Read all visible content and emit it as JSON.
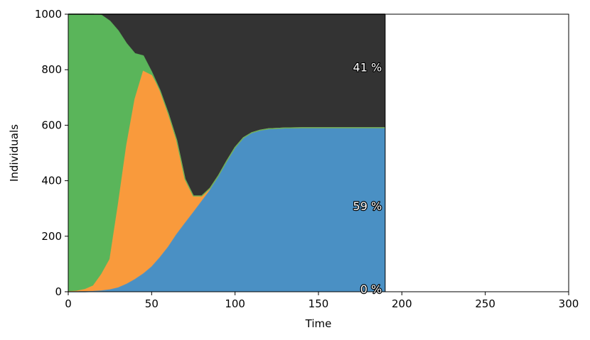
{
  "chart_data": {
    "type": "area",
    "stacked": true,
    "title": "",
    "xlabel": "Time",
    "ylabel": "Individuals",
    "xlim": [
      0,
      300
    ],
    "ylim": [
      0,
      1000
    ],
    "xticks": [
      0,
      50,
      100,
      150,
      200,
      250,
      300
    ],
    "yticks": [
      0,
      200,
      400,
      600,
      800,
      1000
    ],
    "grid": false,
    "legend": "none",
    "x": [
      0,
      5,
      10,
      15,
      20,
      25,
      30,
      35,
      40,
      45,
      50,
      55,
      60,
      65,
      70,
      75,
      80,
      85,
      90,
      95,
      100,
      105,
      110,
      115,
      120,
      130,
      140,
      150,
      160,
      170,
      180,
      190
    ],
    "series": [
      {
        "color": "#4a90c4",
        "values": [
          0,
          0,
          0,
          1,
          3,
          7,
          14,
          27,
          44,
          64,
          89,
          123,
          161,
          206,
          246,
          285,
          325,
          365,
          415,
          470,
          520,
          555,
          573,
          582,
          587,
          590,
          591,
          591,
          591,
          591,
          591,
          591
        ]
      },
      {
        "color": "#f99a3c",
        "values": [
          0,
          2,
          8,
          20,
          60,
          110,
          300,
          500,
          650,
          730,
          690,
          600,
          480,
          340,
          160,
          60,
          20,
          8,
          3,
          1,
          0,
          0,
          0,
          0,
          0,
          0,
          0,
          0,
          0,
          0,
          0,
          0
        ]
      },
      {
        "color": "#5ab55a",
        "values": [
          1000,
          998,
          992,
          979,
          933,
          858,
          626,
          367,
          164,
          56,
          13,
          3,
          1,
          0,
          0,
          0,
          0,
          0,
          0,
          0,
          0,
          0,
          0,
          0,
          0,
          0,
          0,
          0,
          0,
          0,
          0,
          0
        ]
      },
      {
        "color": "#333333",
        "values": [
          0,
          0,
          0,
          0,
          4,
          25,
          60,
          106,
          142,
          150,
          208,
          274,
          358,
          454,
          594,
          655,
          655,
          627,
          582,
          529,
          480,
          445,
          427,
          418,
          413,
          410,
          409,
          409,
          409,
          409,
          409,
          409
        ]
      }
    ],
    "annotations": [
      {
        "text": "41 %",
        "x": 188,
        "y": 810
      },
      {
        "text": "59 %",
        "x": 188,
        "y": 310
      },
      {
        "text": "0 %",
        "x": 188,
        "y": 10
      }
    ]
  }
}
